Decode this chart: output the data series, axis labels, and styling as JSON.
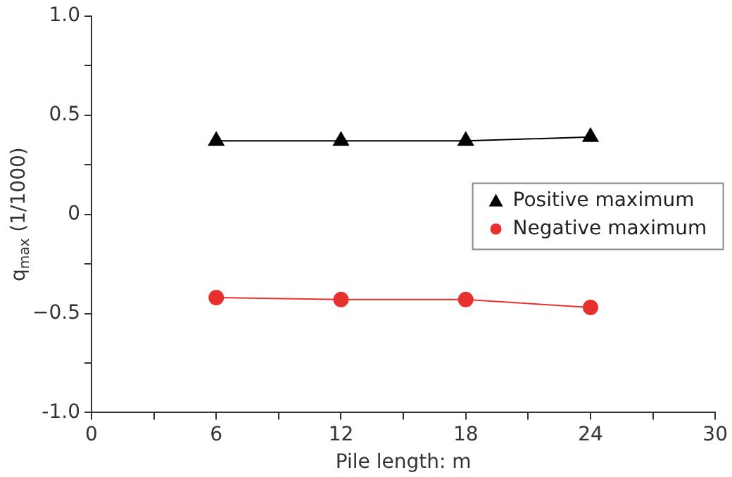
{
  "chart_data": {
    "type": "line",
    "xlabel": "Pile length: m",
    "ylabel": "q$_{max}$ (1/1000)",
    "x": [
      6,
      12,
      18,
      24
    ],
    "series": [
      {
        "name": "Positive maximum",
        "color": "#000000",
        "marker": "triangle",
        "values": [
          0.37,
          0.37,
          0.37,
          0.39
        ]
      },
      {
        "name": "Negative maximum",
        "color": "#e8312f",
        "marker": "circle",
        "values": [
          -0.42,
          -0.43,
          -0.43,
          -0.47
        ]
      }
    ],
    "xlim": [
      0,
      30
    ],
    "xticks": [
      0,
      {
        "value": 3,
        "label": null
      },
      6,
      {
        "value": 9,
        "label": null
      },
      12,
      {
        "value": 15,
        "label": null
      },
      18,
      {
        "value": 21,
        "label": null
      },
      24,
      {
        "value": 27,
        "label": null
      },
      30
    ],
    "ylim": [
      -1,
      1
    ],
    "yticks": [
      {
        "value": -1,
        "label": "-1.0"
      },
      {
        "value": -0.75,
        "label": null
      },
      -0.5,
      {
        "value": -0.25,
        "label": null
      },
      0,
      {
        "value": 0.25,
        "label": null
      },
      0.5,
      {
        "value": 0.75,
        "label": null
      },
      {
        "value": 1,
        "label": "1.0"
      }
    ],
    "grid": false,
    "legend": "right"
  }
}
